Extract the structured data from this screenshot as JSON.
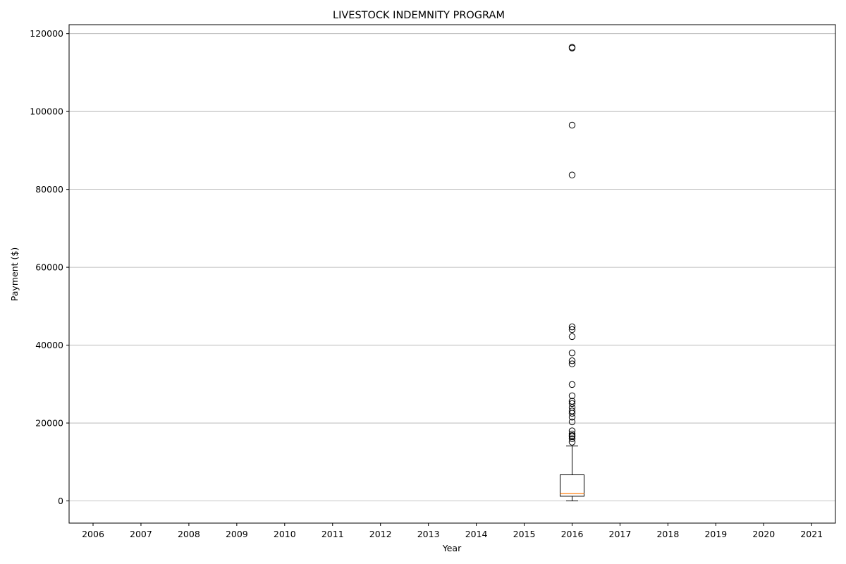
{
  "chart_data": {
    "type": "boxplot",
    "title": "LIVESTOCK INDEMNITY PROGRAM",
    "xlabel": "Year",
    "ylabel": "Payment ($)",
    "categories": [
      "2006",
      "2007",
      "2008",
      "2009",
      "2010",
      "2011",
      "2012",
      "2013",
      "2014",
      "2015",
      "2016",
      "2017",
      "2018",
      "2019",
      "2020",
      "2021"
    ],
    "ylim": [
      -5700,
      122300
    ],
    "yticks": [
      0,
      20000,
      40000,
      60000,
      80000,
      100000,
      120000
    ],
    "grid": "y",
    "colors": {
      "grid": "#b0b0b0",
      "box": "#000000",
      "median": "#ff7f0e",
      "flier": "#000000"
    },
    "boxes": [
      {
        "category": "2016",
        "whisker_low": 0,
        "q1": 1200,
        "median": 1900,
        "q3": 6700,
        "whisker_high": 14100,
        "fliers": [
          116500,
          116300,
          96500,
          83700,
          44700,
          44000,
          42200,
          38000,
          36000,
          35200,
          29900,
          27000,
          25600,
          25000,
          24000,
          23100,
          22500,
          21500,
          20300,
          18000,
          17200,
          16800,
          16500,
          16000,
          15100
        ]
      }
    ]
  }
}
